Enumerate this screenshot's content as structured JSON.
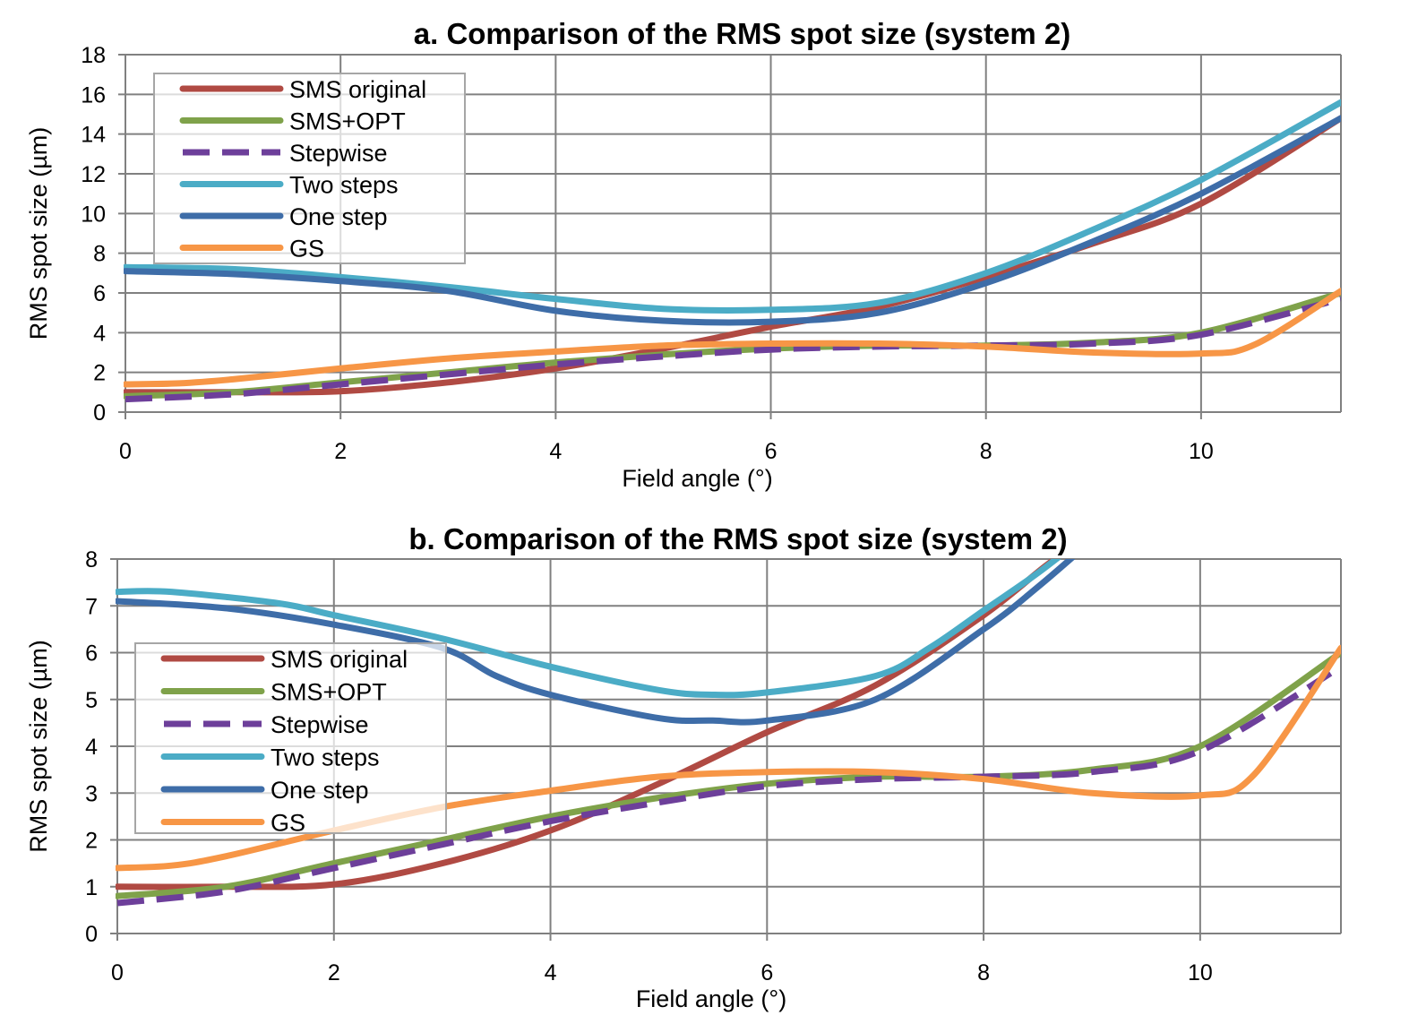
{
  "chart_data": [
    {
      "type": "line",
      "title": "a. Comparison of the RMS spot size (system 2)",
      "xlabel": "Field angle (°)",
      "ylabel": "RMS spot size (µm)",
      "xlim": [
        0,
        11.3
      ],
      "ylim": [
        0,
        18
      ],
      "xticks": [
        "0",
        "2",
        "4",
        "6",
        "8",
        "10"
      ],
      "yticks": [
        "0",
        "2",
        "4",
        "6",
        "8",
        "10",
        "12",
        "14",
        "16",
        "18"
      ],
      "grid": true,
      "legend_position": "top-left",
      "series": [
        {
          "name": "SMS original",
          "color": "#b04a43",
          "dash": false,
          "x": [
            0,
            1,
            2,
            3,
            4,
            5,
            6,
            7,
            8,
            9,
            10,
            11.3
          ],
          "y": [
            1.0,
            1.0,
            1.05,
            1.5,
            2.2,
            3.2,
            4.3,
            5.3,
            6.8,
            8.5,
            10.5,
            14.8
          ]
        },
        {
          "name": "SMS+OPT",
          "color": "#7fa24a",
          "dash": false,
          "x": [
            0,
            1,
            2,
            3,
            4,
            5,
            6,
            7,
            8,
            9,
            10,
            11.3
          ],
          "y": [
            0.8,
            1.0,
            1.5,
            2.0,
            2.5,
            2.9,
            3.2,
            3.35,
            3.35,
            3.5,
            4.0,
            6.0
          ]
        },
        {
          "name": "Stepwise",
          "color": "#6d3f9a",
          "dash": true,
          "x": [
            0,
            1,
            2,
            3,
            4,
            5,
            6,
            7,
            8,
            9,
            10,
            11.3
          ],
          "y": [
            0.65,
            0.9,
            1.4,
            1.9,
            2.4,
            2.8,
            3.15,
            3.3,
            3.35,
            3.45,
            3.9,
            5.7
          ]
        },
        {
          "name": "Two steps",
          "color": "#4bacc6",
          "dash": false,
          "x": [
            0,
            1,
            2,
            3,
            4,
            5,
            6,
            7,
            8,
            9,
            10,
            11.3
          ],
          "y": [
            7.3,
            7.2,
            6.8,
            6.3,
            5.7,
            5.2,
            5.15,
            5.5,
            7.0,
            9.2,
            11.7,
            15.6
          ]
        },
        {
          "name": "One step",
          "color": "#3e6da8",
          "dash": false,
          "x": [
            0,
            1,
            2,
            3,
            4,
            5,
            6,
            7,
            8,
            9,
            10,
            11.3
          ],
          "y": [
            7.1,
            6.95,
            6.6,
            6.1,
            5.1,
            4.6,
            4.55,
            5.0,
            6.5,
            8.6,
            11.0,
            14.8
          ]
        },
        {
          "name": "GS",
          "color": "#f79646",
          "dash": false,
          "x": [
            0,
            0.5,
            1,
            2,
            3,
            4,
            5,
            6,
            7,
            8,
            9,
            10,
            10.5,
            11.3
          ],
          "y": [
            1.4,
            1.45,
            1.65,
            2.2,
            2.7,
            3.05,
            3.35,
            3.45,
            3.45,
            3.3,
            3.0,
            2.95,
            3.4,
            6.1
          ]
        }
      ]
    },
    {
      "type": "line",
      "title": "b. Comparison of the RMS spot size (system 2)",
      "xlabel": "Field angle (°)",
      "ylabel": "RMS spot size (µm)",
      "xlim": [
        0,
        11.3
      ],
      "ylim": [
        0,
        8
      ],
      "xticks": [
        "0",
        "2",
        "4",
        "6",
        "8",
        "10"
      ],
      "yticks": [
        "0",
        "1",
        "2",
        "3",
        "4",
        "5",
        "6",
        "7",
        "8"
      ],
      "grid": true,
      "legend_position": "center-left",
      "series": [
        {
          "name": "SMS original",
          "color": "#b04a43",
          "dash": false,
          "x": [
            0,
            1,
            2,
            3,
            4,
            5,
            6,
            7,
            8,
            8.6,
            9
          ],
          "y": [
            1.0,
            1.0,
            1.05,
            1.5,
            2.2,
            3.2,
            4.3,
            5.3,
            6.8,
            7.9,
            8.5
          ]
        },
        {
          "name": "SMS+OPT",
          "color": "#7fa24a",
          "dash": false,
          "x": [
            0,
            1,
            2,
            3,
            4,
            5,
            6,
            7,
            8,
            9,
            10,
            11.3
          ],
          "y": [
            0.8,
            1.0,
            1.5,
            2.0,
            2.5,
            2.9,
            3.2,
            3.35,
            3.35,
            3.5,
            4.0,
            6.0
          ]
        },
        {
          "name": "Stepwise",
          "color": "#6d3f9a",
          "dash": true,
          "x": [
            0,
            1,
            2,
            3,
            4,
            5,
            6,
            7,
            8,
            9,
            10,
            11.3
          ],
          "y": [
            0.65,
            0.9,
            1.4,
            1.9,
            2.4,
            2.8,
            3.15,
            3.3,
            3.35,
            3.45,
            3.9,
            5.7
          ]
        },
        {
          "name": "Two steps",
          "color": "#4bacc6",
          "dash": false,
          "x": [
            0,
            0.5,
            1.5,
            2,
            3,
            4,
            5,
            5.5,
            6,
            7,
            7.5,
            8,
            8.5,
            9
          ],
          "y": [
            7.3,
            7.3,
            7.05,
            6.8,
            6.3,
            5.7,
            5.2,
            5.1,
            5.15,
            5.5,
            6.1,
            6.9,
            7.7,
            8.6
          ]
        },
        {
          "name": "One step",
          "color": "#3e6da8",
          "dash": false,
          "x": [
            0,
            1,
            2,
            3,
            3.5,
            4,
            5,
            5.5,
            6,
            7,
            8,
            8.5,
            9
          ],
          "y": [
            7.1,
            6.95,
            6.6,
            6.1,
            5.5,
            5.1,
            4.6,
            4.55,
            4.55,
            5.0,
            6.5,
            7.4,
            8.4
          ]
        },
        {
          "name": "GS",
          "color": "#f79646",
          "dash": false,
          "x": [
            0,
            0.5,
            1,
            2,
            3,
            4,
            5,
            6,
            7,
            8,
            9,
            10,
            10.5,
            11.3
          ],
          "y": [
            1.4,
            1.45,
            1.65,
            2.2,
            2.7,
            3.05,
            3.35,
            3.45,
            3.45,
            3.3,
            3.0,
            2.95,
            3.4,
            6.1
          ]
        }
      ]
    }
  ]
}
